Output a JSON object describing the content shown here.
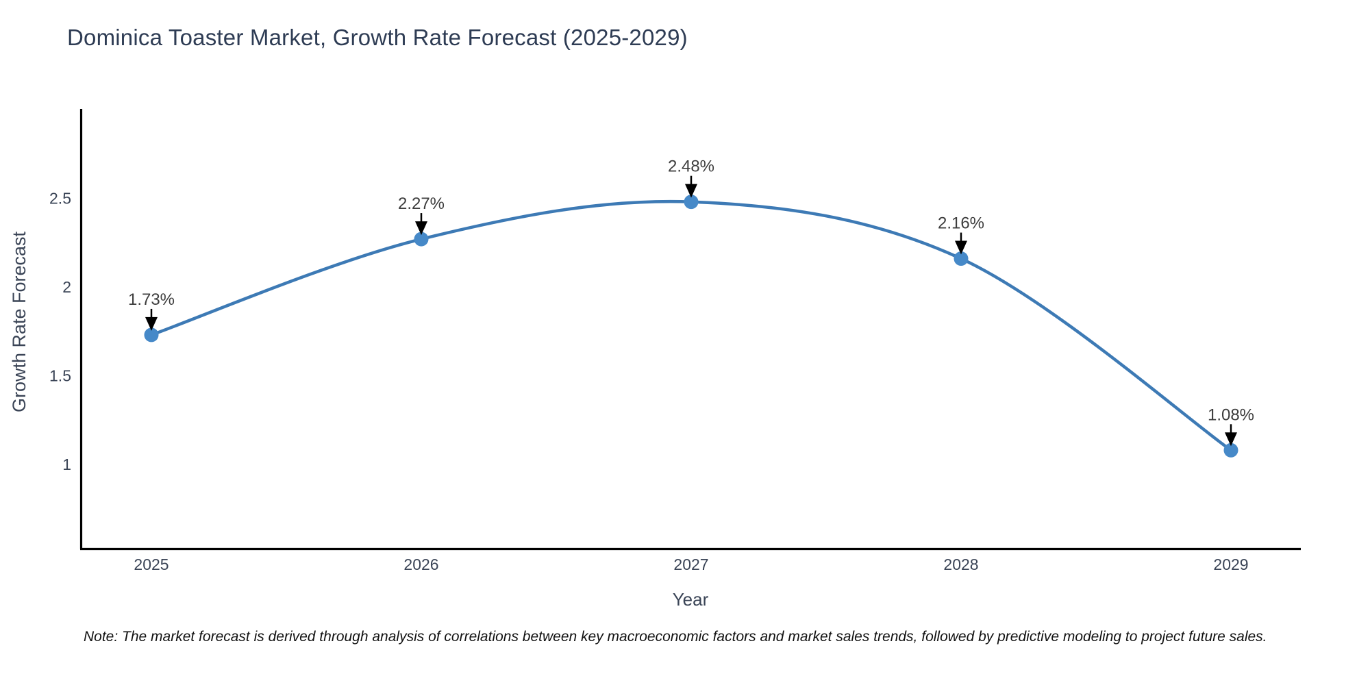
{
  "title": "Dominica Toaster Market, Growth Rate Forecast (2025-2029)",
  "note": "Note: The market forecast is derived through analysis of correlations between key macroeconomic factors and market sales trends, followed by predictive modeling to project future sales.",
  "chart_data": {
    "type": "line",
    "title": "Dominica Toaster Market, Growth Rate Forecast (2025-2029)",
    "xlabel": "Year",
    "ylabel": "Growth Rate Forecast",
    "categories": [
      "2025",
      "2026",
      "2027",
      "2028",
      "2029"
    ],
    "series": [
      {
        "name": "Growth Rate Forecast",
        "values": [
          1.73,
          2.27,
          2.48,
          2.16,
          1.08
        ],
        "point_labels": [
          "1.73%",
          "2.27%",
          "2.48%",
          "2.16%",
          "1.08%"
        ]
      }
    ],
    "y_ticks": [
      "1",
      "1.5",
      "2",
      "2.5"
    ],
    "y_tick_values": [
      1,
      1.5,
      2,
      2.5
    ],
    "ylim": [
      0.5,
      3.0
    ],
    "grid": false,
    "legend": "none",
    "smooth_curve": true,
    "colors": {
      "line": "#3d7ab5",
      "marker": "#4689c8",
      "annotation_text": "#3d3d3d",
      "annotation_arrow": "#000000",
      "axis_line": "#000000",
      "tick_label": "#3a4456",
      "title_text": "#2e3c54"
    }
  }
}
